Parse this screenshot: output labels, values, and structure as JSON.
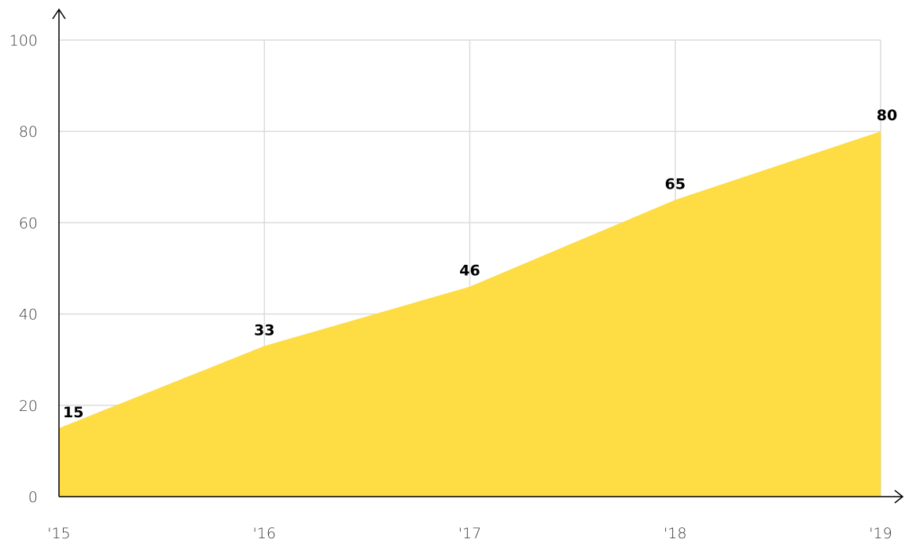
{
  "chart_data": {
    "type": "area",
    "x": [
      "'15",
      "'16",
      "'17",
      "'18",
      "'19"
    ],
    "values": [
      15,
      33,
      46,
      65,
      80
    ],
    "data_labels": [
      "15",
      "33",
      "46",
      "65",
      "80"
    ],
    "yticks": [
      "0",
      "20",
      "40",
      "60",
      "80",
      "100"
    ],
    "ylim": [
      0,
      100
    ],
    "grid": true,
    "colors": {
      "fill": "#FDDC44"
    }
  }
}
